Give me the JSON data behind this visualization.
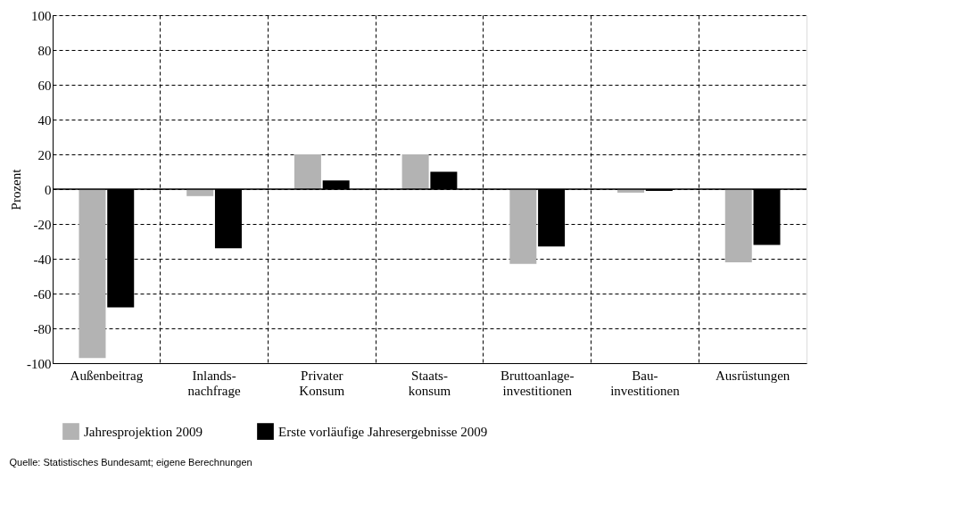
{
  "chart_data": {
    "type": "bar",
    "ylabel": "Prozent",
    "categories": [
      "Außenbeitrag",
      "Inlands-\nnachfrage",
      "Privater\nKonsum",
      "Staats-\nkonsum",
      "Bruttoanlage-\ninvestitionen",
      "Bau-\ninvestitionen",
      "Ausrüstungen"
    ],
    "series": [
      {
        "name": "Jahresprojektion 2009",
        "color": "#b3b3b3",
        "values": [
          -97,
          -4,
          20,
          20,
          -43,
          -2,
          -42
        ]
      },
      {
        "name": "Erste vorläufige Jahresergebnisse 2009",
        "color": "#000000",
        "values": [
          -68,
          -34,
          5,
          10,
          -33,
          -1,
          -32
        ]
      }
    ],
    "ylim": [
      -100,
      100
    ],
    "yticks": [
      -100,
      -80,
      -60,
      -40,
      -20,
      0,
      20,
      40,
      60,
      80,
      100
    ],
    "grid": true,
    "legend": "bottom left",
    "annotations": [
      "Quelle: Statistisches Bundesamt; eigene Berechnungen"
    ]
  }
}
